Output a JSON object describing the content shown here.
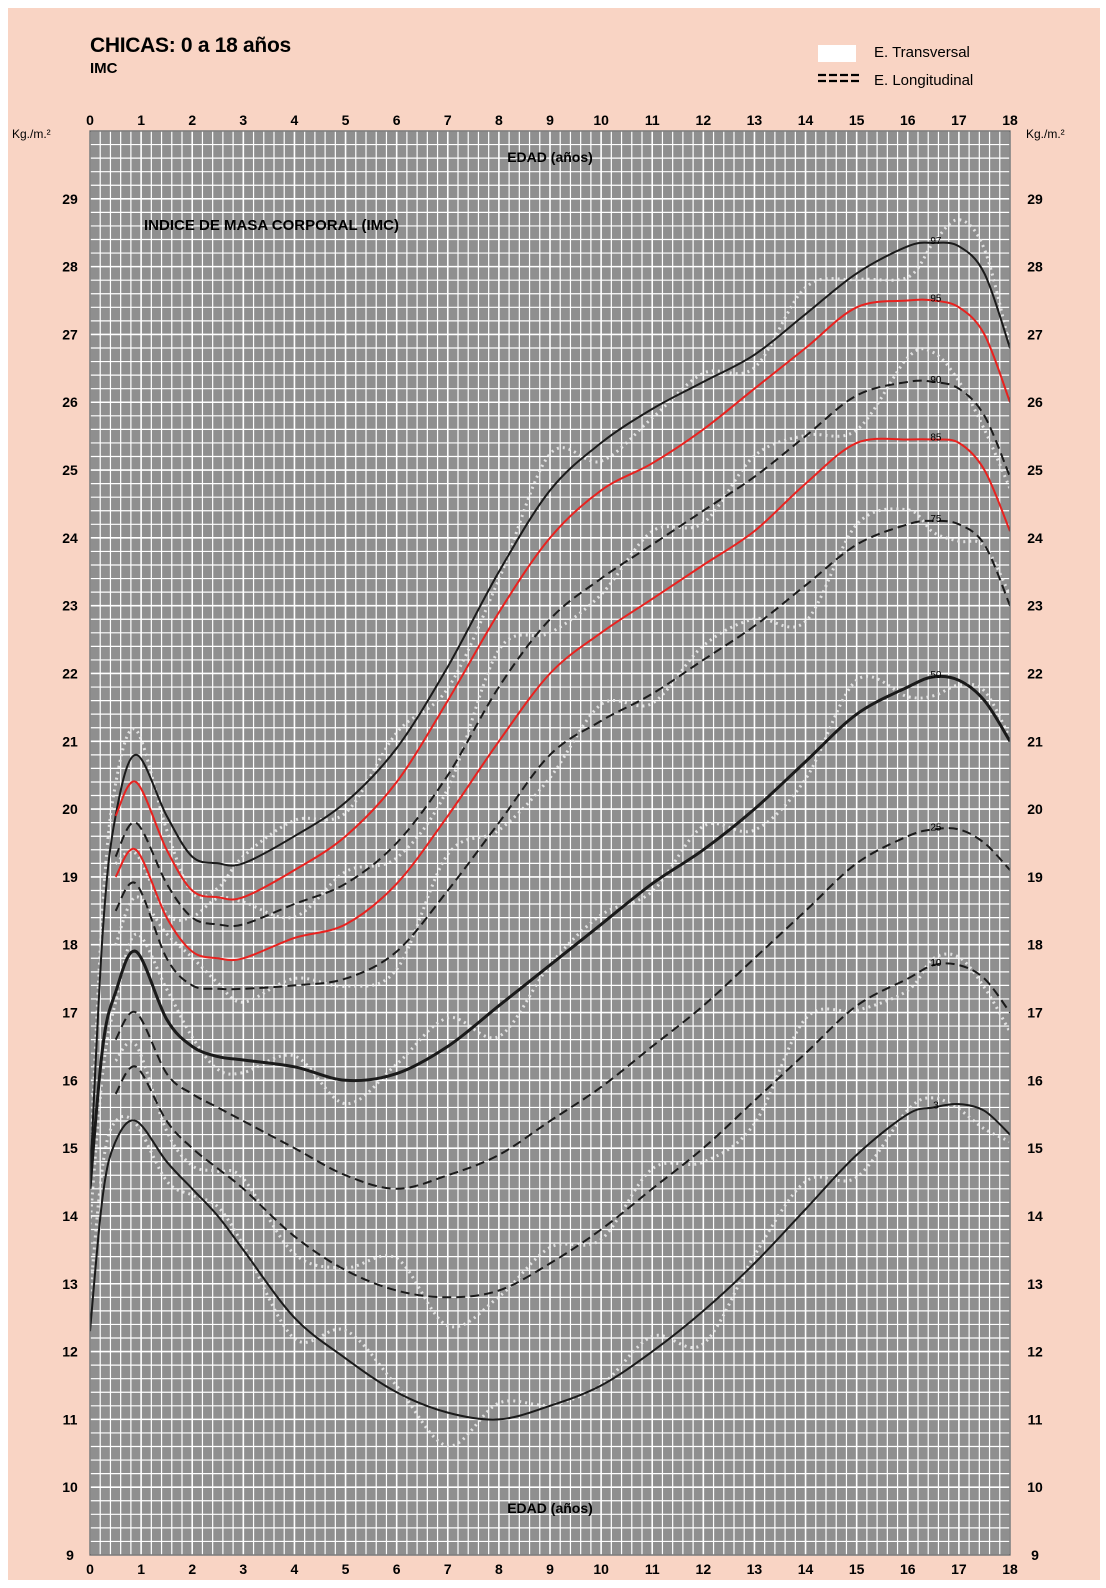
{
  "header": {
    "title": "CHICAS: 0 a 18 años",
    "subtitle": "IMC",
    "legend": [
      {
        "label": "E. Transversal",
        "style": "white-band"
      },
      {
        "label": "E. Longitudinal",
        "style": "dashed"
      }
    ]
  },
  "colors": {
    "page_background": "#f9d4c4",
    "grid_background": "#8f8f8f",
    "grid_lines": "#ffffff",
    "black_curves": "#1a1a1a",
    "red_curves": "#e8221f"
  },
  "chart_data": {
    "type": "line",
    "title": "INDICE DE MASA CORPORAL (IMC)",
    "xlabel": "EDAD (años)",
    "ylabel_left": "Kg./m.²",
    "ylabel_right": "Kg./m.²",
    "xlim": [
      0,
      18
    ],
    "ylim": [
      9,
      30
    ],
    "x_ticks": [
      0,
      1,
      2,
      3,
      4,
      5,
      6,
      7,
      8,
      9,
      10,
      11,
      12,
      13,
      14,
      15,
      16,
      17,
      18
    ],
    "y_ticks": [
      9,
      10,
      11,
      12,
      13,
      14,
      15,
      16,
      17,
      18,
      19,
      20,
      21,
      22,
      23,
      24,
      25,
      26,
      27,
      28,
      29
    ],
    "grid": true,
    "legend_position": "top-right",
    "x": [
      0,
      0.25,
      0.5,
      0.9,
      1.5,
      2,
      2.5,
      3,
      4,
      5,
      6,
      7,
      8,
      9,
      10,
      11,
      12,
      13,
      14,
      15,
      16,
      16.5,
      17,
      17.5,
      18
    ],
    "series": [
      {
        "name": "97",
        "style": "solid",
        "color": "black",
        "start_x": 0,
        "values": [
          14.5,
          18.2,
          19.9,
          20.8,
          19.9,
          19.3,
          19.2,
          19.2,
          19.6,
          20.1,
          20.9,
          22.1,
          23.5,
          24.7,
          25.4,
          25.9,
          26.3,
          26.7,
          27.3,
          27.9,
          28.3,
          28.35,
          28.3,
          27.9,
          26.8
        ]
      },
      {
        "name": "95",
        "style": "solid",
        "color": "red",
        "start_x": 0.5,
        "values": [
          null,
          null,
          19.9,
          20.4,
          19.4,
          18.8,
          18.7,
          18.7,
          19.1,
          19.6,
          20.4,
          21.6,
          22.9,
          24.0,
          24.7,
          25.1,
          25.6,
          26.2,
          26.8,
          27.4,
          27.5,
          27.5,
          27.4,
          27.0,
          26.0
        ]
      },
      {
        "name": "90",
        "style": "dashed",
        "color": "black",
        "start_x": 0.5,
        "values": [
          null,
          null,
          19.3,
          19.8,
          18.9,
          18.4,
          18.3,
          18.3,
          18.6,
          18.9,
          19.5,
          20.5,
          21.8,
          22.8,
          23.4,
          23.9,
          24.4,
          24.9,
          25.5,
          26.1,
          26.3,
          26.3,
          26.2,
          25.8,
          24.9
        ]
      },
      {
        "name": "85",
        "style": "solid",
        "color": "red",
        "start_x": 0.5,
        "values": [
          null,
          null,
          19.0,
          19.4,
          18.4,
          17.9,
          17.8,
          17.8,
          18.1,
          18.3,
          18.9,
          19.9,
          21.0,
          22.0,
          22.6,
          23.1,
          23.6,
          24.1,
          24.8,
          25.4,
          25.45,
          25.45,
          25.4,
          25.0,
          24.1
        ]
      },
      {
        "name": "75",
        "style": "dashed",
        "color": "black",
        "start_x": 0.5,
        "values": [
          null,
          null,
          18.5,
          18.9,
          17.8,
          17.4,
          17.35,
          17.35,
          17.4,
          17.5,
          17.9,
          18.8,
          19.8,
          20.8,
          21.3,
          21.7,
          22.2,
          22.7,
          23.3,
          23.9,
          24.2,
          24.25,
          24.2,
          23.9,
          23.0
        ]
      },
      {
        "name": "50",
        "style": "solid-thick",
        "color": "black",
        "start_x": 0,
        "values": [
          14.4,
          16.5,
          17.3,
          17.9,
          16.9,
          16.5,
          16.35,
          16.3,
          16.2,
          16.0,
          16.1,
          16.5,
          17.1,
          17.7,
          18.3,
          18.9,
          19.4,
          20.0,
          20.7,
          21.4,
          21.8,
          21.95,
          21.9,
          21.6,
          21.0
        ]
      },
      {
        "name": "25",
        "style": "dashed",
        "color": "black",
        "start_x": 0.5,
        "values": [
          null,
          null,
          16.6,
          17.0,
          16.1,
          15.8,
          15.6,
          15.4,
          15.0,
          14.6,
          14.4,
          14.6,
          14.9,
          15.4,
          15.9,
          16.5,
          17.1,
          17.8,
          18.5,
          19.2,
          19.6,
          19.7,
          19.7,
          19.5,
          19.1
        ]
      },
      {
        "name": "10",
        "style": "dashed",
        "color": "black",
        "start_x": 0.5,
        "values": [
          null,
          null,
          15.8,
          16.2,
          15.4,
          15.0,
          14.7,
          14.4,
          13.7,
          13.2,
          12.9,
          12.8,
          12.9,
          13.3,
          13.8,
          14.4,
          15.0,
          15.7,
          16.4,
          17.1,
          17.5,
          17.7,
          17.7,
          17.5,
          17.0
        ]
      },
      {
        "name": "3",
        "style": "solid",
        "color": "black",
        "start_x": 0,
        "values": [
          12.3,
          14.3,
          15.1,
          15.4,
          14.8,
          14.4,
          14.0,
          13.5,
          12.5,
          11.9,
          11.4,
          11.1,
          11.0,
          11.2,
          11.5,
          12.0,
          12.6,
          13.3,
          14.1,
          14.9,
          15.5,
          15.6,
          15.65,
          15.55,
          15.2
        ]
      }
    ]
  }
}
